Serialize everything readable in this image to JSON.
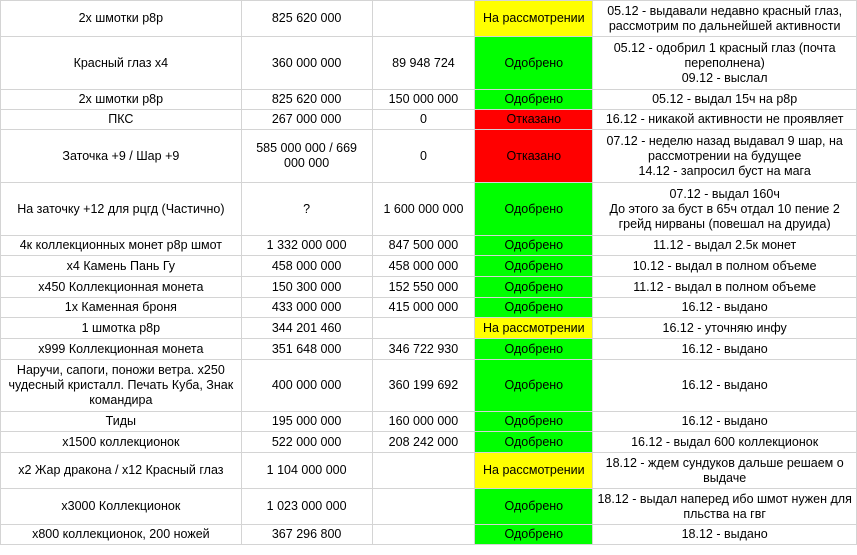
{
  "status_colors": {
    "На рассмотрении": "#ffff00",
    "Одобрено": "#00ff00",
    "Отказано": "#ff0000"
  },
  "rows": [
    {
      "item": "2х шмотки р8р",
      "price": "825 620 000",
      "paid": "",
      "status": "На рассмотрении",
      "comment": "05.12 - выдавали недавно красный глаз, рассмотрим по дальнейшей активности"
    },
    {
      "item": "Красный глаз х4",
      "price": "360 000 000",
      "paid": "89 948 724",
      "status": "Одобрено",
      "comment": "05.12 - одобрил 1 красный глаз (почта переполнена)\n09.12 - выслал"
    },
    {
      "item": "2х шмотки р8р",
      "price": "825 620 000",
      "paid": "150 000 000",
      "status": "Одобрено",
      "comment": "05.12 - выдал 15ч на р8р"
    },
    {
      "item": "ПКС",
      "price": "267 000 000",
      "paid": "0",
      "status": "Отказано",
      "comment": "16.12 - никакой активности не проявляет"
    },
    {
      "item": "Заточка +9 / Шар +9",
      "price": "585 000 000 / 669 000 000",
      "paid": "0",
      "status": "Отказано",
      "comment": "07.12 - неделю назад выдавал 9 шар, на рассмотрении на будущее\n14.12 - запросил буст на мага"
    },
    {
      "item": "На заточку +12 для рцгд (Частично)",
      "price": "?",
      "paid": "1 600 000 000",
      "status": "Одобрено",
      "comment": "07.12 - выдал 160ч\nДо этого за буст в 65ч отдал 10 пение 2 грейд нирваны (повешал на друида)"
    },
    {
      "item": "4к коллекционных монет р8р шмот",
      "price": "1 332 000 000",
      "paid": "847 500 000",
      "status": "Одобрено",
      "comment": "11.12 - выдал 2.5к монет"
    },
    {
      "item": "х4 Камень Пань Гу",
      "price": "458 000 000",
      "paid": "458 000 000",
      "status": "Одобрено",
      "comment": "10.12 - выдал в полном объеме"
    },
    {
      "item": "х450 Коллекционная монета",
      "price": "150 300 000",
      "paid": "152 550 000",
      "status": "Одобрено",
      "comment": "11.12 - выдал в полном объеме"
    },
    {
      "item": "1х Каменная броня",
      "price": "433 000 000",
      "paid": "415 000 000",
      "status": "Одобрено",
      "comment": "16.12 - выдано"
    },
    {
      "item": "1 шмотка р8р",
      "price": "344 201 460",
      "paid": "",
      "status": "На рассмотрении",
      "comment": "16.12 - уточняю инфу"
    },
    {
      "item": "х999 Коллекционная монета",
      "price": "351 648 000",
      "paid": "346 722 930",
      "status": "Одобрено",
      "comment": "16.12 - выдано"
    },
    {
      "item": "Наручи, сапоги, поножи ветра. х250 чудесный кристалл. Печать Куба, Знак командира",
      "price": "400 000 000",
      "paid": "360 199 692",
      "status": "Одобрено",
      "comment": "16.12 - выдано"
    },
    {
      "item": "Тиды",
      "price": "195 000 000",
      "paid": "160 000 000",
      "status": "Одобрено",
      "comment": "16.12 - выдано"
    },
    {
      "item": "х1500 коллекционок",
      "price": "522 000 000",
      "paid": "208 242 000",
      "status": "Одобрено",
      "comment": "16.12 - выдал 600 коллекционок"
    },
    {
      "item": "х2 Жар дракона / х12 Красный глаз",
      "price": "1 104 000 000",
      "paid": "",
      "status": "На рассмотрении",
      "comment": "18.12 - ждем сундуков дальше решаем о выдаче"
    },
    {
      "item": "х3000 Коллекционок",
      "price": "1 023 000 000",
      "paid": "",
      "status": "Одобрено",
      "comment": "18.12 - выдал наперед ибо шмот нужен для пльства на гвг"
    },
    {
      "item": "х800 коллекционок, 200 ножей",
      "price": "367 296 800",
      "paid": "",
      "status": "Одобрено",
      "comment": "18.12 - выдано"
    }
  ]
}
